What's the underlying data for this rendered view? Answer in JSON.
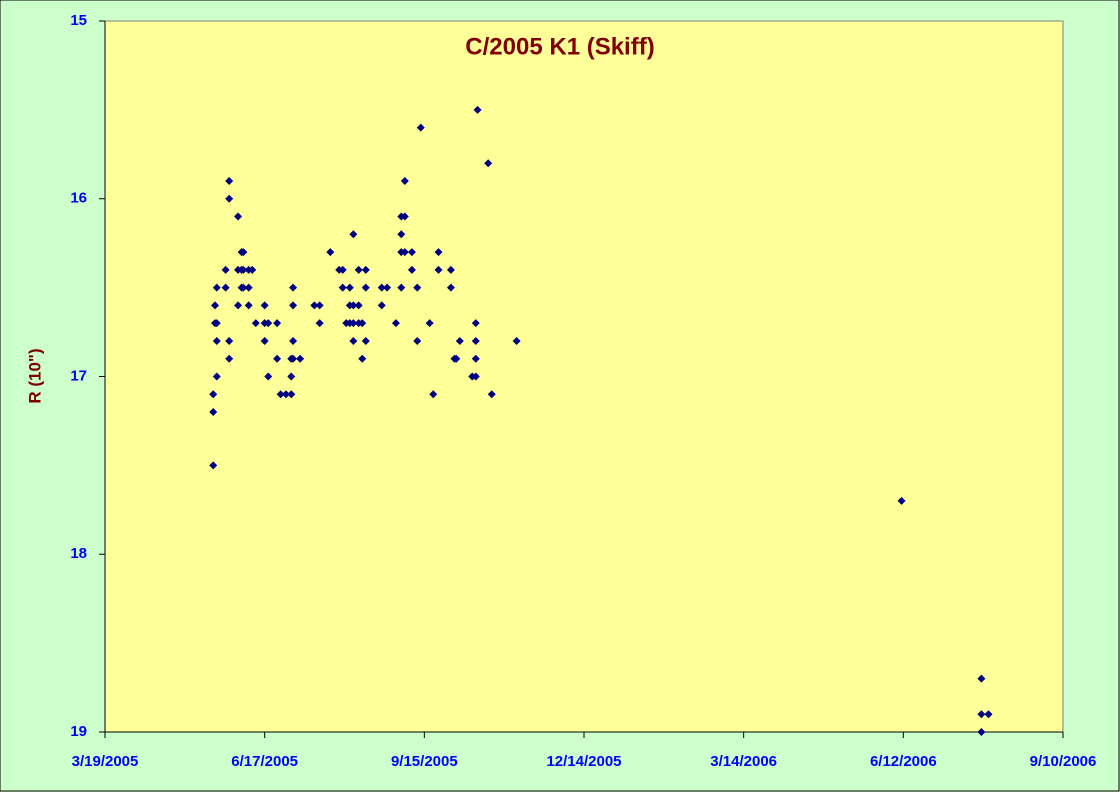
{
  "chart_data": {
    "type": "scatter",
    "title": "C/2005 K1 (Skiff)",
    "y_label": "R (10\")",
    "x": [
      "2005-05-19",
      "2005-05-19",
      "2005-05-19",
      "2005-05-20",
      "2005-05-20",
      "2005-05-21",
      "2005-05-21",
      "2005-05-21",
      "2005-05-21",
      "2005-05-26",
      "2005-05-26",
      "2005-05-28",
      "2005-05-28",
      "2005-05-28",
      "2005-05-28",
      "2005-06-02",
      "2005-06-02",
      "2005-06-02",
      "2005-06-04",
      "2005-06-04",
      "2005-06-04",
      "2005-06-05",
      "2005-06-05",
      "2005-06-05",
      "2005-06-08",
      "2005-06-08",
      "2005-06-08",
      "2005-06-10",
      "2005-06-12",
      "2005-06-17",
      "2005-06-17",
      "2005-06-17",
      "2005-06-19",
      "2005-06-19",
      "2005-06-24",
      "2005-06-24",
      "2005-06-26",
      "2005-06-29",
      "2005-07-02",
      "2005-07-02",
      "2005-07-02",
      "2005-07-03",
      "2005-07-03",
      "2005-07-03",
      "2005-07-03",
      "2005-07-07",
      "2005-07-15",
      "2005-07-18",
      "2005-07-18",
      "2005-07-24",
      "2005-07-29",
      "2005-07-31",
      "2005-07-31",
      "2005-08-02",
      "2005-08-04",
      "2005-08-04",
      "2005-08-04",
      "2005-08-06",
      "2005-08-06",
      "2005-08-06",
      "2005-08-06",
      "2005-08-09",
      "2005-08-09",
      "2005-08-09",
      "2005-08-11",
      "2005-08-11",
      "2005-08-13",
      "2005-08-13",
      "2005-08-13",
      "2005-08-22",
      "2005-08-22",
      "2005-08-25",
      "2005-08-30",
      "2005-09-02",
      "2005-09-02",
      "2005-09-02",
      "2005-09-02",
      "2005-09-04",
      "2005-09-04",
      "2005-09-04",
      "2005-09-08",
      "2005-09-08",
      "2005-09-11",
      "2005-09-11",
      "2005-09-13",
      "2005-09-18",
      "2005-09-20",
      "2005-09-23",
      "2005-09-23",
      "2005-09-30",
      "2005-09-30",
      "2005-10-02",
      "2005-10-03",
      "2005-10-05",
      "2005-10-12",
      "2005-10-14",
      "2005-10-14",
      "2005-10-14",
      "2005-10-14",
      "2005-10-15",
      "2005-10-21",
      "2005-10-23",
      "2005-11-06",
      "2006-06-11",
      "2006-07-26",
      "2006-07-26",
      "2006-07-26",
      "2006-07-30"
    ],
    "values": [
      17.5,
      17.2,
      17.1,
      16.7,
      16.6,
      16.5,
      16.7,
      16.8,
      17.0,
      16.4,
      16.5,
      15.9,
      16.0,
      16.8,
      16.9,
      16.1,
      16.4,
      16.6,
      16.3,
      16.4,
      16.5,
      16.3,
      16.4,
      16.5,
      16.4,
      16.5,
      16.6,
      16.4,
      16.7,
      16.6,
      16.7,
      16.8,
      16.7,
      17.0,
      16.7,
      16.9,
      17.1,
      17.1,
      16.9,
      17.0,
      17.1,
      16.5,
      16.6,
      16.8,
      16.9,
      16.9,
      16.6,
      16.6,
      16.7,
      16.3,
      16.4,
      16.4,
      16.5,
      16.7,
      16.5,
      16.6,
      16.7,
      16.2,
      16.6,
      16.7,
      16.8,
      16.4,
      16.6,
      16.7,
      16.7,
      16.9,
      16.4,
      16.5,
      16.8,
      16.5,
      16.6,
      16.5,
      16.7,
      16.1,
      16.2,
      16.3,
      16.5,
      15.9,
      16.1,
      16.3,
      16.3,
      16.4,
      16.5,
      16.8,
      15.6,
      16.7,
      17.1,
      16.3,
      16.4,
      16.4,
      16.5,
      16.9,
      16.9,
      16.8,
      17.0,
      16.7,
      16.8,
      16.9,
      17.0,
      15.5,
      15.8,
      17.1,
      16.8,
      17.7,
      18.7,
      18.9,
      19.0,
      18.9
    ],
    "color": "#000080",
    "xlim": [
      "2005-03-19",
      "2006-09-10"
    ],
    "xticks": [
      {
        "value": "2005-03-19",
        "label": "3/19/2005"
      },
      {
        "value": "2005-06-17",
        "label": "6/17/2005"
      },
      {
        "value": "2005-09-15",
        "label": "9/15/2005"
      },
      {
        "value": "2005-12-14",
        "label": "12/14/2005"
      },
      {
        "value": "2006-03-14",
        "label": "3/14/2006"
      },
      {
        "value": "2006-06-12",
        "label": "6/12/2006"
      },
      {
        "value": "2006-09-10",
        "label": "9/10/2006"
      }
    ],
    "ylim": [
      15,
      19
    ],
    "yticks": [
      15,
      16,
      17,
      18,
      19
    ],
    "y_reversed": true,
    "grid": false
  }
}
